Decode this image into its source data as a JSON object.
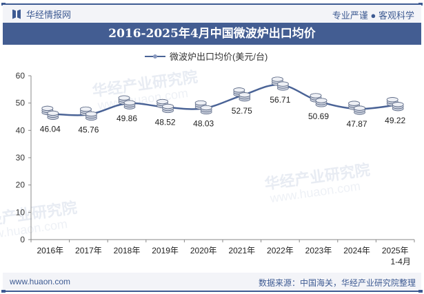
{
  "header": {
    "brand": "华经情报网",
    "slogan": "专业严谨 ● 客观科学",
    "title": "2016-2025年4月中国微波炉出口均价"
  },
  "legend": {
    "label": "微波炉出口均价(美元/台)"
  },
  "footer": {
    "url": "www.huaon.com",
    "source": "数据来源：中国海关，华经产业研究院整理"
  },
  "watermark": {
    "text": "华经产业研究院",
    "url": "www.huaon.com"
  },
  "colors": {
    "line": "#4a6396",
    "title_bg": "#435d92",
    "brand": "#3d5a92"
  },
  "chart_data": {
    "type": "line",
    "title": "2016-2025年4月中国微波炉出口均价",
    "xlabel": "",
    "ylabel": "",
    "categories": [
      "2016年",
      "2017年",
      "2018年",
      "2019年",
      "2020年",
      "2021年",
      "2022年",
      "2023年",
      "2024年",
      "2025年 1-4月"
    ],
    "series": [
      {
        "name": "微波炉出口均价(美元/台)",
        "values": [
          46.04,
          45.76,
          49.86,
          48.52,
          48.03,
          52.75,
          56.71,
          50.69,
          47.87,
          49.22
        ]
      }
    ],
    "ylim": [
      0,
      60
    ],
    "yticks": [
      0,
      10,
      20,
      30,
      40,
      50,
      60
    ],
    "grid": false,
    "legend_position": "top"
  }
}
